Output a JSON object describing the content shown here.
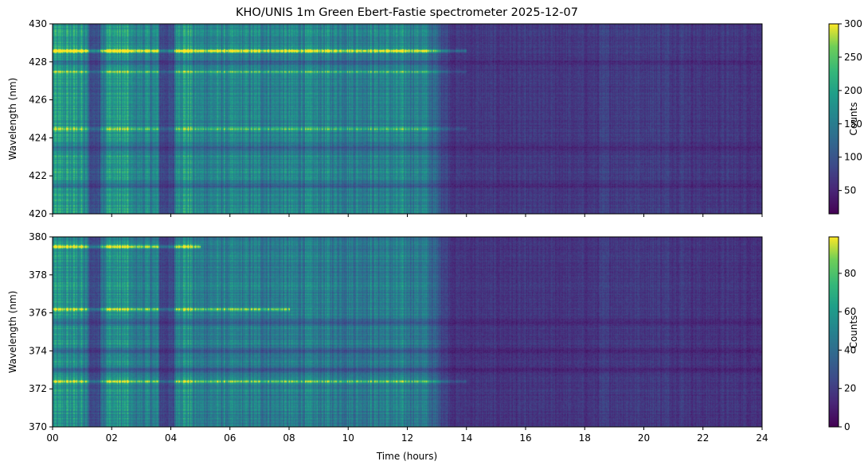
{
  "title": "KHO/UNIS 1m Green Ebert-Fastie spectrometer 2025-12-07",
  "chart_data": [
    {
      "type": "heatmap",
      "panel": "top",
      "xlabel": "",
      "ylabel": "Wavelength (nm)",
      "xlim": [
        0,
        24
      ],
      "ylim": [
        420,
        430
      ],
      "x_ticks": [
        0,
        2,
        4,
        6,
        8,
        10,
        12,
        14,
        16,
        18,
        20,
        22,
        24
      ],
      "x_tick_labels": [],
      "y_ticks": [
        420,
        422,
        424,
        426,
        428,
        430
      ],
      "y_tick_labels": [
        "420",
        "422",
        "424",
        "426",
        "428",
        "430"
      ],
      "colorbar": {
        "label": "Counts",
        "range": [
          15,
          300
        ],
        "ticks": [
          50,
          100,
          150,
          200,
          250,
          300
        ],
        "tick_labels": [
          "50",
          "100",
          "150",
          "200",
          "250",
          "300"
        ],
        "colormap": "viridis"
      },
      "emission_lines": [
        {
          "wavelength": 428.6,
          "active_hours": [
            0,
            14
          ],
          "peak_counts": 300
        },
        {
          "wavelength": 424.5,
          "active_hours": [
            0,
            14
          ],
          "peak_counts": 150
        },
        {
          "wavelength": 427.5,
          "active_hours": [
            0,
            14
          ],
          "peak_counts": 140
        }
      ],
      "dark_bands_nm": [
        423.5,
        428.0,
        421.5
      ],
      "description_profile": {
        "bright_hours": [
          [
            0,
            1
          ],
          [
            1.8,
            2.6
          ],
          [
            4.2,
            7.3
          ],
          [
            7.3,
            12.5
          ]
        ],
        "dark_hours": [
          [
            1.2,
            1.6
          ],
          [
            3.6,
            4.1
          ],
          [
            13,
            24
          ]
        ]
      }
    },
    {
      "type": "heatmap",
      "panel": "bottom",
      "xlabel": "Time (hours)",
      "ylabel": "Wavelength (nm)",
      "xlim": [
        0,
        24
      ],
      "ylim": [
        370,
        380
      ],
      "x_ticks": [
        0,
        2,
        4,
        6,
        8,
        10,
        12,
        14,
        16,
        18,
        20,
        22,
        24
      ],
      "x_tick_labels": [
        "00",
        "02",
        "04",
        "06",
        "08",
        "10",
        "12",
        "14",
        "16",
        "18",
        "20",
        "22",
        "24"
      ],
      "y_ticks": [
        370,
        372,
        374,
        376,
        378,
        380
      ],
      "y_tick_labels": [
        "370",
        "372",
        "374",
        "376",
        "378",
        "380"
      ],
      "colorbar": {
        "label": "Counts",
        "range": [
          0,
          99
        ],
        "ticks": [
          0,
          20,
          40,
          60,
          80
        ],
        "tick_labels": [
          "0",
          "20",
          "40",
          "60",
          "80"
        ],
        "colormap": "viridis"
      },
      "emission_lines": [
        {
          "wavelength": 372.4,
          "active_hours": [
            0,
            14
          ],
          "peak_counts": 60
        },
        {
          "wavelength": 376.2,
          "active_hours": [
            0,
            8
          ],
          "peak_counts": 60
        },
        {
          "wavelength": 379.5,
          "active_hours": [
            0,
            5
          ],
          "peak_counts": 80
        }
      ],
      "dark_bands_nm": [
        375.5,
        374.0,
        373.0
      ],
      "description_profile": {
        "bright_hours": [
          [
            0,
            1
          ],
          [
            1.8,
            2.6
          ],
          [
            4.2,
            7.3
          ],
          [
            7.3,
            12.5
          ]
        ],
        "dark_hours": [
          [
            1.2,
            1.6
          ],
          [
            3.6,
            4.1
          ],
          [
            13,
            24
          ]
        ]
      }
    }
  ]
}
